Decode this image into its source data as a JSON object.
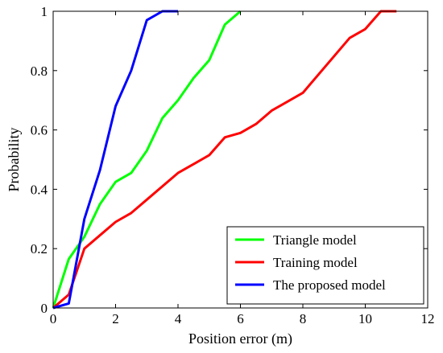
{
  "chart_data": {
    "type": "line",
    "title": "",
    "xlabel": "Position error (m)",
    "ylabel": "Probability",
    "xlim": [
      0,
      12
    ],
    "ylim": [
      0,
      1
    ],
    "xticks": [
      0,
      2,
      4,
      6,
      8,
      10,
      12
    ],
    "yticks": [
      0,
      0.2,
      0.4,
      0.6,
      0.8,
      1
    ],
    "xtick_labels": [
      "0",
      "2",
      "4",
      "6",
      "8",
      "10",
      "12"
    ],
    "ytick_labels": [
      "0",
      "0.2",
      "0.4",
      "0.6",
      "0.8",
      "1"
    ],
    "grid": false,
    "legend_position": "bottom-right",
    "series": [
      {
        "name": "Triangle model",
        "color": "#00ff00",
        "points": [
          [
            0,
            0
          ],
          [
            0.5,
            0.165
          ],
          [
            1,
            0.24
          ],
          [
            1.5,
            0.35
          ],
          [
            2,
            0.425
          ],
          [
            2.5,
            0.455
          ],
          [
            3,
            0.53
          ],
          [
            3.5,
            0.64
          ],
          [
            4,
            0.7
          ],
          [
            4.5,
            0.775
          ],
          [
            5,
            0.835
          ],
          [
            5.5,
            0.955
          ],
          [
            6,
            1.0
          ]
        ]
      },
      {
        "name": "Training model",
        "color": "#ff0000",
        "points": [
          [
            0,
            0
          ],
          [
            0.5,
            0.045
          ],
          [
            1,
            0.2
          ],
          [
            2,
            0.29
          ],
          [
            2.5,
            0.32
          ],
          [
            3,
            0.365
          ],
          [
            4,
            0.455
          ],
          [
            4.5,
            0.485
          ],
          [
            5,
            0.515
          ],
          [
            5.5,
            0.575
          ],
          [
            6,
            0.59
          ],
          [
            6.5,
            0.62
          ],
          [
            7,
            0.665
          ],
          [
            8,
            0.725
          ],
          [
            9.5,
            0.91
          ],
          [
            10,
            0.94
          ],
          [
            10.5,
            1.0
          ],
          [
            11,
            1.0
          ]
        ]
      },
      {
        "name": "The proposed model",
        "color": "#0000ff",
        "points": [
          [
            0,
            0
          ],
          [
            0.5,
            0.015
          ],
          [
            1,
            0.3
          ],
          [
            1.5,
            0.465
          ],
          [
            2,
            0.68
          ],
          [
            2.5,
            0.8
          ],
          [
            3,
            0.97
          ],
          [
            3.5,
            1.0
          ],
          [
            4,
            1.0
          ]
        ]
      }
    ]
  }
}
